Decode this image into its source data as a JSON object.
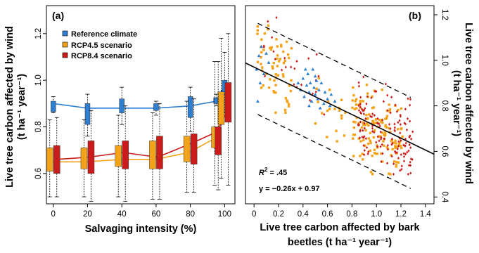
{
  "chart_data": [
    {
      "type": "box",
      "panel_label": "(a)",
      "xlabel": "Salvaging intensity (%)",
      "ylabel_line1": "Live tree carbon affected by wind",
      "ylabel_line2": "(t ha⁻¹ year⁻¹)",
      "x_ticks": [
        "0",
        "20",
        "40",
        "60",
        "80",
        "100"
      ],
      "y_ticks": [
        "0.6",
        "0.8",
        "1.0",
        "1.2"
      ],
      "xlim": [
        -4,
        106
      ],
      "ylim": [
        0.47,
        1.32
      ],
      "legend": [
        {
          "label": "Reference climate",
          "color": "#2f7fd1"
        },
        {
          "label": "RCP4.5 scenario",
          "color": "#f3a31a"
        },
        {
          "label": "RCP8.4 scenario",
          "color": "#cc1b1b"
        }
      ],
      "series": [
        {
          "name": "Reference climate",
          "color": "#2f7fd1",
          "offset": 0,
          "x": [
            0,
            20,
            40,
            60,
            80,
            95,
            100
          ],
          "boxes": [
            {
              "q1": 0.865,
              "q3": 0.91,
              "lo": 0.86,
              "hi": 0.93,
              "median": 0.9
            },
            {
              "q1": 0.81,
              "q3": 0.9,
              "lo": 0.76,
              "hi": 0.94,
              "median": 0.88
            },
            {
              "q1": 0.86,
              "q3": 0.92,
              "lo": 0.81,
              "hi": 0.97,
              "median": 0.88
            },
            {
              "q1": 0.87,
              "q3": 0.9,
              "lo": 0.85,
              "hi": 0.91,
              "median": 0.88
            },
            {
              "q1": 0.84,
              "q3": 0.93,
              "lo": 0.78,
              "hi": 0.97,
              "median": 0.88
            },
            {
              "q1": 0.9,
              "q3": 0.925,
              "lo": 0.89,
              "hi": 0.94,
              "median": 0.91
            },
            {
              "q1": 0.94,
              "q3": 1.0,
              "lo": 0.86,
              "hi": 1.12,
              "median": 0.98
            }
          ],
          "line": [
            0.9,
            0.88,
            0.88,
            0.88,
            0.89,
            0.91,
            0.98
          ]
        },
        {
          "name": "RCP4.5 scenario",
          "color": "#f3a31a",
          "offset": 0,
          "x": [
            0,
            20,
            40,
            60,
            80,
            95,
            100
          ],
          "boxes": [
            {
              "q1": 0.61,
              "q3": 0.71,
              "lo": 0.5,
              "hi": 0.83,
              "median": 0.65
            },
            {
              "q1": 0.62,
              "q3": 0.71,
              "lo": 0.5,
              "hi": 0.83,
              "median": 0.66
            },
            {
              "q1": 0.63,
              "q3": 0.72,
              "lo": 0.5,
              "hi": 0.85,
              "median": 0.67
            },
            {
              "q1": 0.62,
              "q3": 0.74,
              "lo": 0.49,
              "hi": 0.86,
              "median": 0.67
            },
            {
              "q1": 0.65,
              "q3": 0.76,
              "lo": 0.52,
              "hi": 0.91,
              "median": 0.71
            },
            {
              "q1": 0.71,
              "q3": 0.8,
              "lo": 0.55,
              "hi": 1.08,
              "median": 0.75
            },
            {
              "q1": 0.81,
              "q3": 0.95,
              "lo": 0.58,
              "hi": 1.18,
              "median": 0.88
            }
          ],
          "line": [
            0.65,
            0.65,
            0.66,
            0.66,
            0.69,
            0.75,
            0.86
          ]
        },
        {
          "name": "RCP8.4 scenario",
          "color": "#cc1b1b",
          "offset": 3,
          "x": [
            0,
            20,
            40,
            60,
            80,
            95,
            100
          ],
          "boxes": [
            {
              "q1": 0.6,
              "q3": 0.72,
              "lo": 0.5,
              "hi": 0.84,
              "median": 0.66
            },
            {
              "q1": 0.6,
              "q3": 0.74,
              "lo": 0.48,
              "hi": 0.87,
              "median": 0.68
            },
            {
              "q1": 0.62,
              "q3": 0.74,
              "lo": 0.48,
              "hi": 0.89,
              "median": 0.69
            },
            {
              "q1": 0.62,
              "q3": 0.76,
              "lo": 0.49,
              "hi": 0.9,
              "median": 0.7
            },
            {
              "q1": 0.64,
              "q3": 0.77,
              "lo": 0.52,
              "hi": 0.92,
              "median": 0.71
            },
            {
              "q1": 0.68,
              "q3": 0.8,
              "lo": 0.53,
              "hi": 1.08,
              "median": 0.76
            },
            {
              "q1": 0.82,
              "q3": 0.99,
              "lo": 0.55,
              "hi": 1.2,
              "median": 0.9
            }
          ],
          "line": [
            0.66,
            0.67,
            0.69,
            0.67,
            0.73,
            0.78,
            0.86
          ]
        }
      ]
    },
    {
      "type": "scatter",
      "panel_label": "(b)",
      "xlabel_line1": "Live tree carbon affected by bark",
      "xlabel_line2": "beetles (t ha⁻¹ year⁻¹)",
      "ylabel_line1": "Live tree carbon affected by wind",
      "ylabel_line2": "(t ha⁻¹ year⁻¹)",
      "y_axis_side": "right",
      "x_ticks": [
        "0",
        "0.2",
        "0.4",
        "0.6",
        "0.8",
        "1.0",
        "1.2",
        "1.4"
      ],
      "y_ticks": [
        "0.4",
        "0.6",
        "0.8",
        "1.0",
        "1.2"
      ],
      "xlim": [
        -0.07,
        1.47
      ],
      "ylim": [
        0.37,
        1.24
      ],
      "regression": {
        "slope": -0.26,
        "intercept": 0.97,
        "band": 0.2
      },
      "annotation_r2": ".45",
      "annotation_eq": "y = −0.26x + 0.97",
      "series": [
        {
          "name": "Reference climate",
          "color": "#2f7fd1",
          "marker": "triangle",
          "points": [
            [
              0.02,
              0.96
            ],
            [
              0.04,
              1.02
            ],
            [
              0.03,
              0.82
            ],
            [
              0.05,
              0.9
            ],
            [
              0.06,
              1.06
            ],
            [
              0.08,
              0.94
            ],
            [
              0.1,
              1.03
            ],
            [
              0.12,
              0.99
            ],
            [
              0.36,
              0.9
            ],
            [
              0.38,
              0.87
            ],
            [
              0.4,
              0.92
            ],
            [
              0.41,
              0.84
            ],
            [
              0.43,
              0.89
            ],
            [
              0.44,
              0.94
            ],
            [
              0.45,
              0.86
            ],
            [
              0.46,
              0.9
            ],
            [
              0.47,
              0.82
            ],
            [
              0.48,
              0.96
            ],
            [
              0.49,
              0.88
            ],
            [
              0.5,
              0.85
            ],
            [
              0.51,
              0.91
            ],
            [
              0.52,
              0.83
            ],
            [
              0.53,
              0.87
            ],
            [
              0.55,
              0.9
            ],
            [
              0.57,
              0.81
            ],
            [
              0.58,
              0.86
            ],
            [
              0.6,
              0.83
            ],
            [
              0.62,
              0.8
            ],
            [
              0.63,
              0.85
            ],
            [
              0.45,
              0.8
            ],
            [
              0.5,
              0.93
            ],
            [
              0.42,
              0.96
            ],
            [
              0.54,
              0.79
            ],
            [
              0.66,
              0.82
            ]
          ]
        },
        {
          "name": "RCP4.5 scenario",
          "color": "#f3a31a",
          "marker": "square",
          "n_points": 220,
          "x_range": [
            0.02,
            1.22
          ]
        },
        {
          "name": "RCP8.4 scenario",
          "color": "#cc1b1b",
          "marker": "diamond",
          "n_points": 170,
          "x_range": [
            0.08,
            1.3
          ]
        }
      ]
    }
  ]
}
